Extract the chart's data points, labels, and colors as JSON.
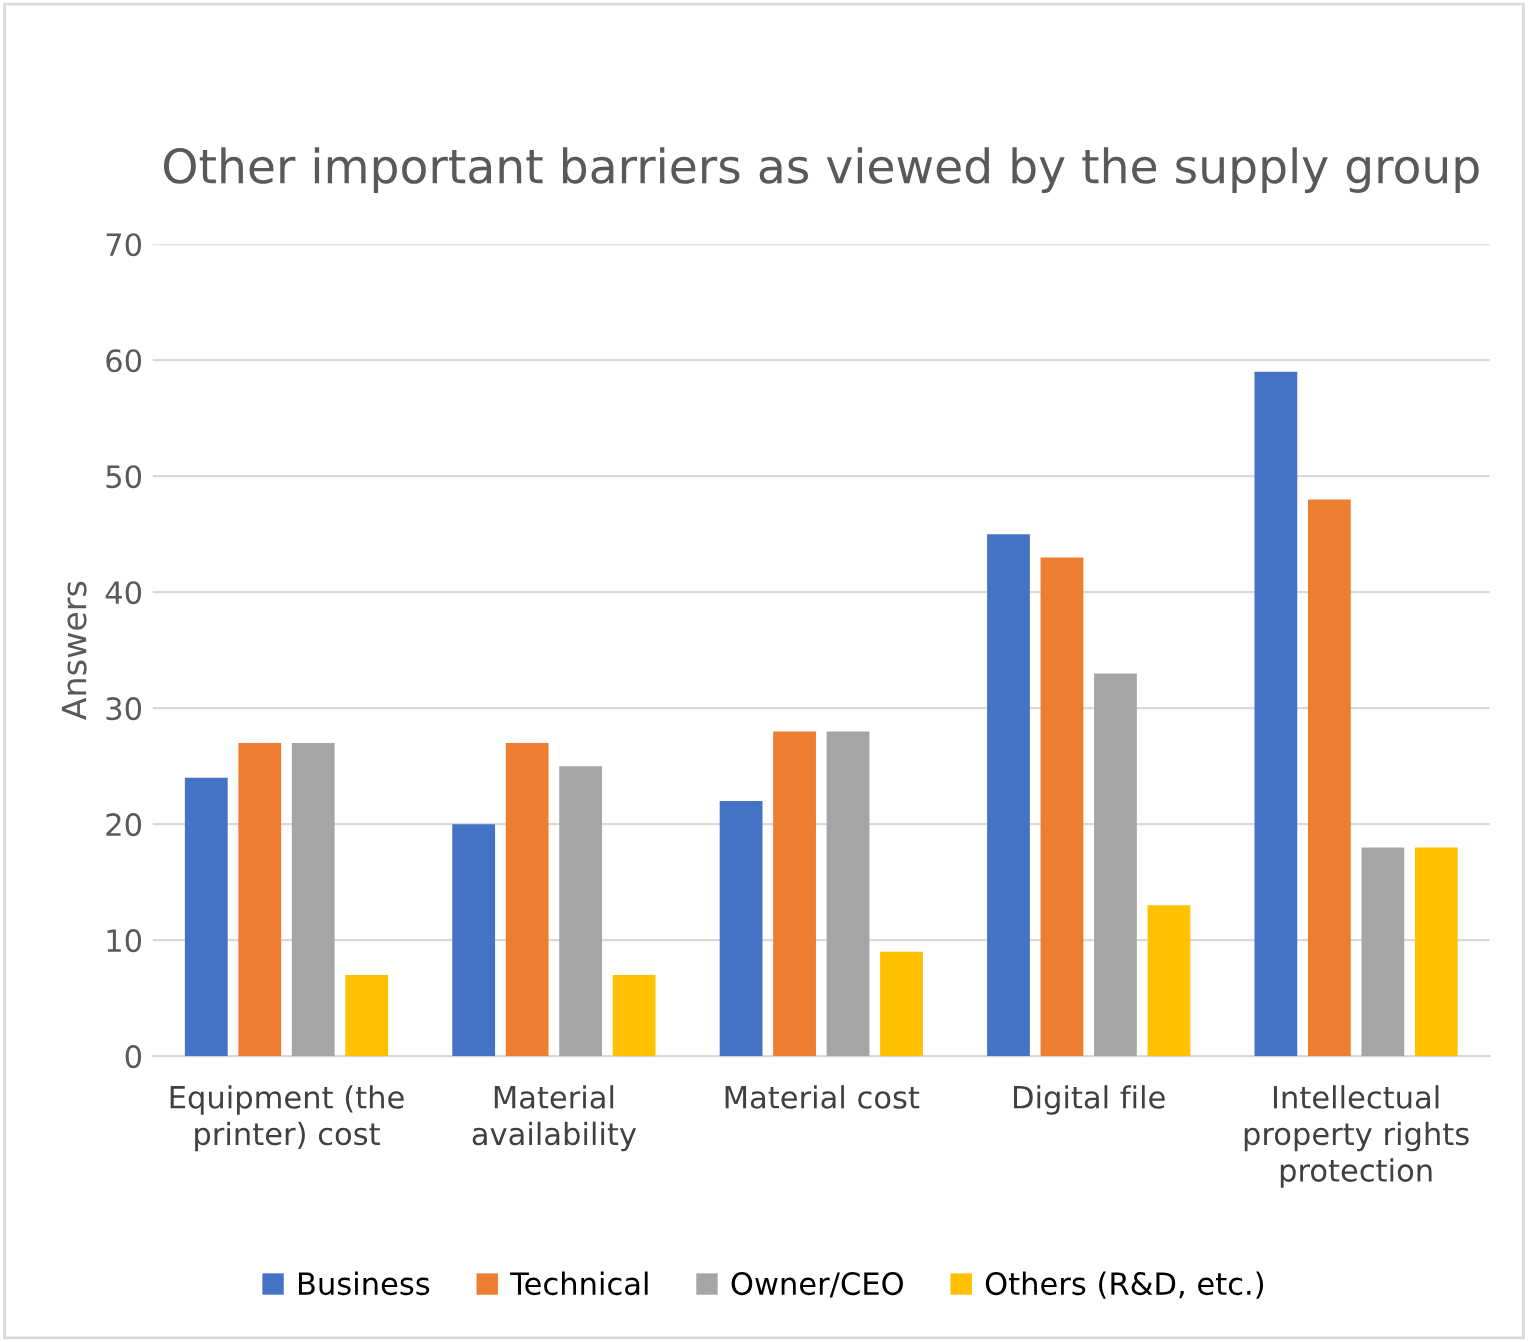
{
  "chart_data": {
    "type": "bar",
    "title": "Other important barriers as viewed by the supply group",
    "ylabel": "Answers",
    "categories": [
      "Equipment (the printer) cost",
      "Material availability",
      "Material cost",
      "Digital file",
      "Intellectual property rights protection"
    ],
    "series": [
      {
        "name": "Business",
        "color": "#4472c4",
        "values": [
          24,
          20,
          22,
          45,
          59
        ]
      },
      {
        "name": "Technical",
        "color": "#ed7d31",
        "values": [
          27,
          27,
          28,
          43,
          48
        ]
      },
      {
        "name": "Owner/CEO",
        "color": "#a5a5a5",
        "values": [
          27,
          25,
          28,
          33,
          18
        ]
      },
      {
        "name": "Others (R&D, etc.)",
        "color": "#ffc000",
        "values": [
          7,
          7,
          9,
          13,
          18
        ]
      }
    ],
    "ylim": [
      0,
      70
    ],
    "yticks": [
      0,
      10,
      20,
      30,
      40,
      50,
      60,
      70
    ],
    "grid": "y",
    "legend": "bottom"
  }
}
